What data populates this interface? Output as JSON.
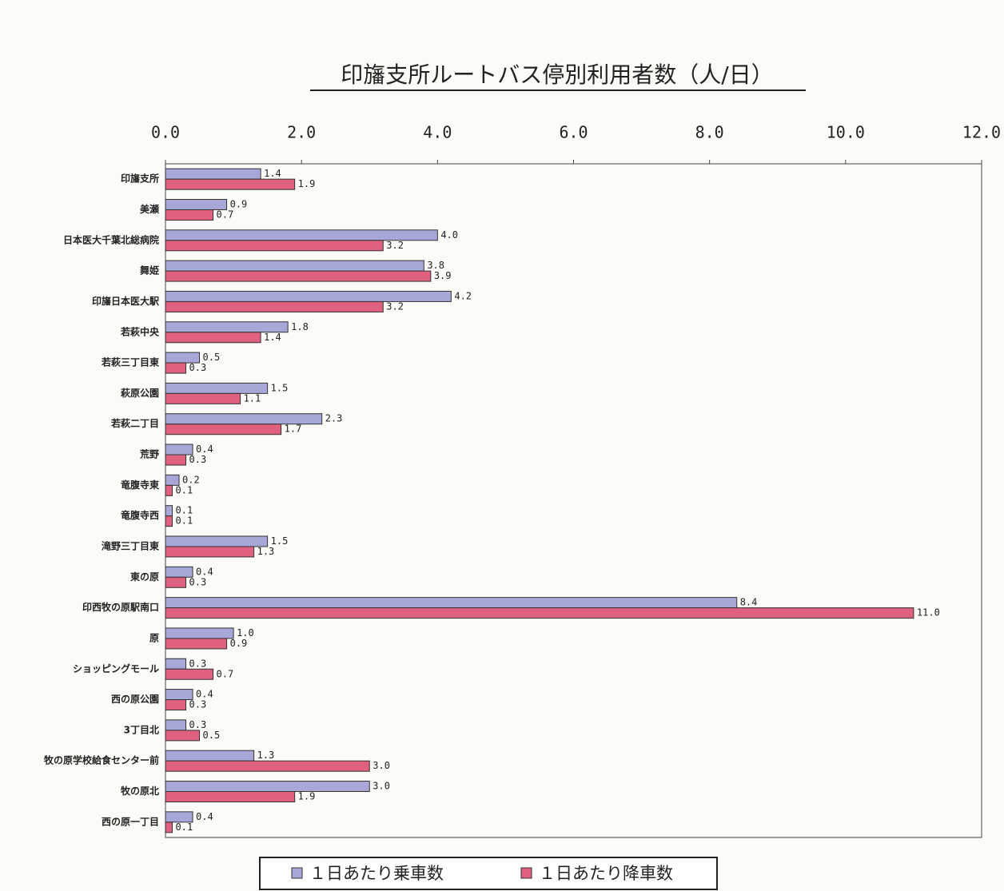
{
  "chart_data": {
    "type": "bar",
    "orientation": "horizontal",
    "title": "印旛支所ルートバス停別利用者数（人/日）",
    "categories": [
      "印旛支所",
      "美瀬",
      "日本医大千葉北総病院",
      "舞姫",
      "印旛日本医大駅",
      "若萩中央",
      "若萩三丁目東",
      "萩原公園",
      "若萩二丁目",
      "荒野",
      "竜腹寺東",
      "竜腹寺西",
      "滝野三丁目東",
      "東の原",
      "印西牧の原駅南口",
      "原",
      "ショッピングモール",
      "西の原公園",
      "3丁目北",
      "牧の原学校給食センター前",
      "牧の原北",
      "西の原一丁目"
    ],
    "series": [
      {
        "name": "１日あたり乗車数",
        "color": "#a8a8d8",
        "values": [
          1.4,
          0.9,
          4.0,
          3.8,
          4.2,
          1.8,
          0.5,
          1.5,
          2.3,
          0.4,
          0.2,
          0.1,
          1.5,
          0.4,
          8.4,
          1.0,
          0.3,
          0.4,
          0.3,
          1.3,
          3.0,
          0.4
        ],
        "value_labels": [
          "1.4",
          "0.9",
          "4.0",
          "3.8",
          "4.2",
          "1.8",
          "0.5",
          "1.5",
          "2.3",
          "0.4",
          "0.2",
          "0.1",
          "1.5",
          "0.4",
          "8.4",
          "1.0",
          "0.3",
          "0.4",
          "0.3",
          "1.3",
          "3.0",
          "0.4"
        ]
      },
      {
        "name": "１日あたり降車数",
        "color": "#e0607f",
        "values": [
          1.9,
          0.7,
          3.2,
          3.9,
          3.2,
          1.4,
          0.3,
          1.1,
          1.7,
          0.3,
          0.1,
          0.1,
          1.3,
          0.3,
          11.0,
          0.9,
          0.7,
          0.3,
          0.5,
          3.0,
          1.9,
          0.1
        ],
        "value_labels": [
          "1.9",
          "0.7",
          "3.2",
          "3.9",
          "3.2",
          "1.4",
          "0.3",
          "1.1",
          "1.7",
          "0.3",
          "0.1",
          "0.1",
          "1.3",
          "0.3",
          "11.0",
          "0.9",
          "0.7",
          "0.3",
          "0.5",
          "3.0",
          "1.9",
          "0.1"
        ]
      }
    ],
    "xlim": [
      0,
      12
    ],
    "xticks": [
      {
        "value": 0,
        "label": "0.0"
      },
      {
        "value": 2,
        "label": "2.0"
      },
      {
        "value": 4,
        "label": "4.0"
      },
      {
        "value": 6,
        "label": "6.0"
      },
      {
        "value": 8,
        "label": "8.0"
      },
      {
        "value": 10,
        "label": "10.0"
      },
      {
        "value": 12,
        "label": "12.0"
      }
    ],
    "legend": "bottom"
  }
}
